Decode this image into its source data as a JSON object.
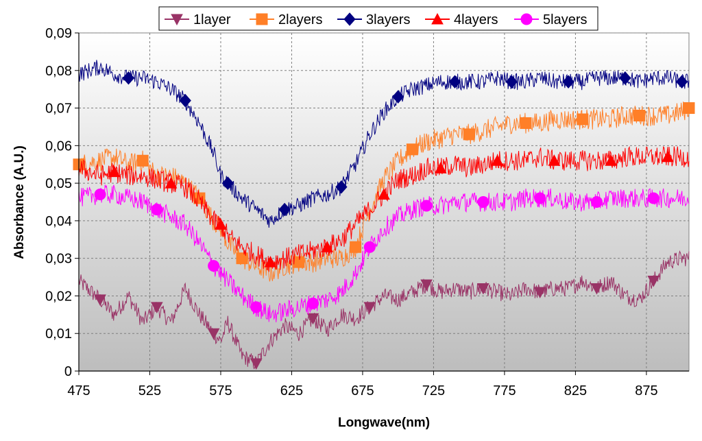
{
  "chart_data": {
    "type": "line",
    "xlabel": "Longwave(nm)",
    "ylabel": "Absorbance (A.U.)",
    "xlim": [
      475,
      905
    ],
    "ylim": [
      0,
      0.09
    ],
    "x_ticks": [
      "475",
      "525",
      "575",
      "625",
      "675",
      "725",
      "775",
      "825",
      "875"
    ],
    "y_ticks": [
      "0",
      "0,01",
      "0,02",
      "0,03",
      "0,04",
      "0,05",
      "0,06",
      "0,07",
      "0,08",
      "0,09"
    ],
    "grid": true,
    "legend": "top",
    "x": [
      475,
      490,
      500,
      510,
      520,
      530,
      540,
      550,
      560,
      570,
      575,
      580,
      590,
      600,
      610,
      620,
      630,
      640,
      650,
      660,
      670,
      680,
      690,
      700,
      710,
      720,
      730,
      740,
      750,
      760,
      770,
      780,
      790,
      800,
      810,
      820,
      830,
      840,
      850,
      860,
      870,
      880,
      890,
      900,
      905
    ],
    "series": [
      {
        "name": "1layer",
        "color": "#993366",
        "marker": "triangle-down",
        "values": [
          0.024,
          0.019,
          0.015,
          0.02,
          0.013,
          0.017,
          0.013,
          0.022,
          0.015,
          0.01,
          0.008,
          0.013,
          0.004,
          0.002,
          0.008,
          0.012,
          0.01,
          0.014,
          0.011,
          0.015,
          0.014,
          0.017,
          0.02,
          0.019,
          0.021,
          0.023,
          0.021,
          0.022,
          0.021,
          0.022,
          0.021,
          0.02,
          0.022,
          0.021,
          0.022,
          0.022,
          0.024,
          0.022,
          0.024,
          0.02,
          0.019,
          0.024,
          0.029,
          0.03,
          0.03
        ]
      },
      {
        "name": "2layers",
        "color": "#FF7F27",
        "marker": "square",
        "values": [
          0.055,
          0.056,
          0.057,
          0.055,
          0.056,
          0.052,
          0.052,
          0.05,
          0.046,
          0.04,
          0.038,
          0.034,
          0.03,
          0.028,
          0.026,
          0.028,
          0.029,
          0.029,
          0.03,
          0.03,
          0.033,
          0.043,
          0.051,
          0.056,
          0.059,
          0.061,
          0.062,
          0.063,
          0.063,
          0.064,
          0.065,
          0.066,
          0.066,
          0.066,
          0.067,
          0.067,
          0.067,
          0.067,
          0.067,
          0.068,
          0.068,
          0.068,
          0.068,
          0.069,
          0.07
        ]
      },
      {
        "name": "3layers",
        "color": "#000080",
        "marker": "diamond",
        "values": [
          0.079,
          0.081,
          0.079,
          0.078,
          0.078,
          0.077,
          0.075,
          0.072,
          0.066,
          0.058,
          0.052,
          0.05,
          0.046,
          0.043,
          0.04,
          0.043,
          0.044,
          0.046,
          0.047,
          0.049,
          0.055,
          0.063,
          0.069,
          0.073,
          0.075,
          0.076,
          0.077,
          0.077,
          0.077,
          0.077,
          0.078,
          0.077,
          0.077,
          0.078,
          0.077,
          0.077,
          0.077,
          0.078,
          0.078,
          0.078,
          0.077,
          0.078,
          0.078,
          0.077,
          0.077
        ]
      },
      {
        "name": "4layers",
        "color": "#FF0000",
        "marker": "triangle-up",
        "values": [
          0.054,
          0.052,
          0.053,
          0.052,
          0.052,
          0.051,
          0.05,
          0.049,
          0.045,
          0.04,
          0.039,
          0.036,
          0.033,
          0.031,
          0.029,
          0.03,
          0.031,
          0.032,
          0.033,
          0.035,
          0.039,
          0.043,
          0.047,
          0.051,
          0.052,
          0.054,
          0.054,
          0.055,
          0.054,
          0.055,
          0.056,
          0.056,
          0.056,
          0.057,
          0.056,
          0.056,
          0.056,
          0.056,
          0.056,
          0.057,
          0.057,
          0.057,
          0.057,
          0.057,
          0.057
        ]
      },
      {
        "name": "5layers",
        "color": "#FF00FF",
        "marker": "circle",
        "values": [
          0.046,
          0.047,
          0.047,
          0.046,
          0.045,
          0.043,
          0.041,
          0.039,
          0.034,
          0.028,
          0.026,
          0.024,
          0.02,
          0.017,
          0.015,
          0.016,
          0.017,
          0.018,
          0.019,
          0.021,
          0.026,
          0.033,
          0.038,
          0.041,
          0.043,
          0.044,
          0.044,
          0.045,
          0.045,
          0.045,
          0.045,
          0.045,
          0.046,
          0.046,
          0.046,
          0.045,
          0.045,
          0.045,
          0.046,
          0.046,
          0.046,
          0.046,
          0.046,
          0.046,
          0.046
        ]
      }
    ]
  }
}
